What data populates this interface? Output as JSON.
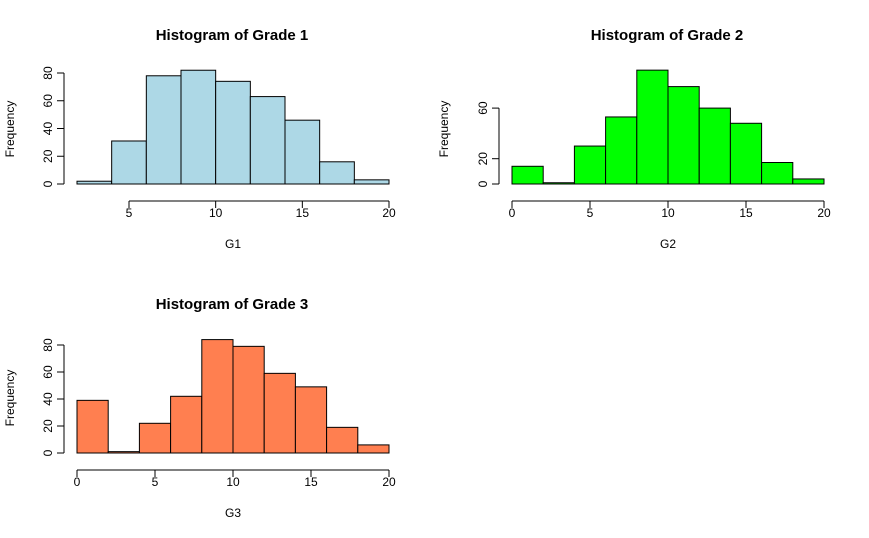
{
  "chart_data": [
    {
      "type": "bar",
      "title": "Histogram of Grade 1",
      "xlabel": "G1",
      "ylabel": "Frequency",
      "color": "#add8e6",
      "bin_edges": [
        2,
        4,
        6,
        8,
        10,
        12,
        14,
        16,
        18,
        20
      ],
      "values": [
        2,
        31,
        78,
        82,
        74,
        63,
        46,
        16,
        3
      ],
      "xticks": [
        "5",
        "10",
        "15",
        "20"
      ],
      "yticks": [
        "0",
        "20",
        "40",
        "60",
        "80"
      ],
      "xlim": [
        2,
        20
      ],
      "ylim": [
        0,
        80
      ]
    },
    {
      "type": "bar",
      "title": "Histogram of Grade 2",
      "xlabel": "G2",
      "ylabel": "Frequency",
      "color": "#00ff00",
      "bin_edges": [
        0,
        2,
        4,
        6,
        8,
        10,
        12,
        14,
        16,
        18,
        20
      ],
      "values": [
        14,
        1,
        30,
        53,
        90,
        77,
        60,
        48,
        17,
        4
      ],
      "xticks": [
        "0",
        "5",
        "10",
        "15",
        "20"
      ],
      "yticks": [
        "0",
        "20",
        "60"
      ],
      "xlim": [
        0,
        20
      ],
      "ylim": [
        0,
        80
      ]
    },
    {
      "type": "bar",
      "title": "Histogram of Grade 3",
      "xlabel": "G3",
      "ylabel": "Frequency",
      "color": "#ff7f50",
      "bin_edges": [
        0,
        2,
        4,
        6,
        8,
        10,
        12,
        14,
        16,
        18,
        20
      ],
      "values": [
        39,
        1,
        22,
        42,
        84,
        79,
        59,
        49,
        19,
        6
      ],
      "xticks": [
        "0",
        "5",
        "10",
        "15",
        "20"
      ],
      "yticks": [
        "0",
        "20",
        "40",
        "60",
        "80"
      ],
      "xlim": [
        0,
        20
      ],
      "ylim": [
        0,
        80
      ]
    }
  ]
}
